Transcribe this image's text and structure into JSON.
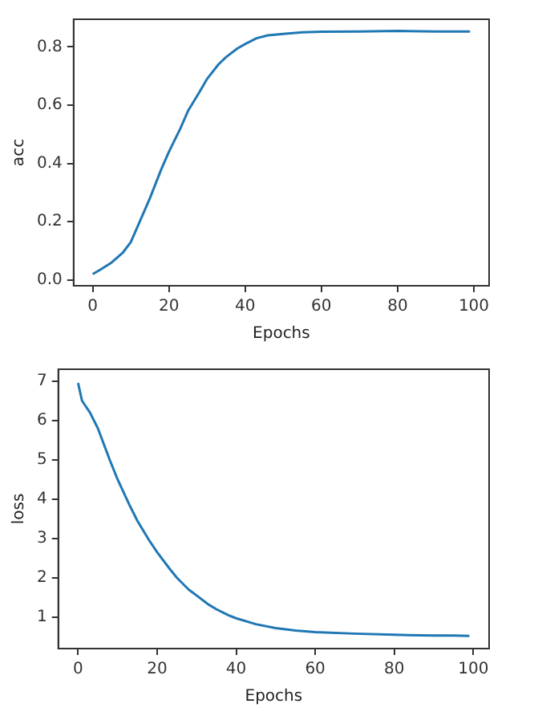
{
  "chart_data": [
    {
      "type": "line",
      "xlabel": "Epochs",
      "ylabel": "acc",
      "xlim": [
        -5,
        104
      ],
      "ylim": [
        -0.02,
        0.895
      ],
      "xticks": [
        0,
        20,
        40,
        60,
        80,
        100
      ],
      "yticks": [
        {
          "value": 0,
          "label": "0.0"
        },
        0.2,
        0.4,
        0.6,
        0.8
      ],
      "grid": false,
      "legend": false,
      "marker": "none",
      "line_style": "solid",
      "x": [
        0,
        2,
        5,
        8,
        10,
        12,
        15,
        18,
        20,
        23,
        25,
        28,
        30,
        33,
        35,
        38,
        40,
        43,
        46,
        50,
        55,
        60,
        70,
        80,
        90,
        99
      ],
      "series": [
        {
          "color": "#1f77b4",
          "values": [
            0.02,
            0.035,
            0.06,
            0.095,
            0.13,
            0.19,
            0.28,
            0.38,
            0.44,
            0.52,
            0.58,
            0.645,
            0.69,
            0.74,
            0.765,
            0.795,
            0.81,
            0.83,
            0.84,
            0.845,
            0.85,
            0.852,
            0.853,
            0.855,
            0.853,
            0.853
          ]
        }
      ]
    },
    {
      "type": "line",
      "xlabel": "Epochs",
      "ylabel": "loss",
      "xlim": [
        -5,
        104
      ],
      "ylim": [
        0.2,
        7.3
      ],
      "xticks": [
        0,
        20,
        40,
        60,
        80,
        100
      ],
      "yticks": [
        1,
        2,
        3,
        4,
        5,
        6,
        7
      ],
      "grid": false,
      "legend": false,
      "marker": "none",
      "line_style": "solid",
      "x": [
        0,
        1,
        3,
        5,
        8,
        10,
        13,
        15,
        18,
        20,
        23,
        25,
        28,
        30,
        33,
        35,
        38,
        40,
        45,
        50,
        55,
        60,
        70,
        80,
        90,
        95,
        99
      ],
      "series": [
        {
          "color": "#1f77b4",
          "values": [
            6.95,
            6.5,
            6.2,
            5.8,
            5.0,
            4.5,
            3.85,
            3.45,
            2.95,
            2.65,
            2.25,
            2.0,
            1.7,
            1.55,
            1.32,
            1.2,
            1.05,
            0.97,
            0.82,
            0.72,
            0.66,
            0.62,
            0.58,
            0.55,
            0.53,
            0.53,
            0.52
          ]
        }
      ]
    }
  ]
}
